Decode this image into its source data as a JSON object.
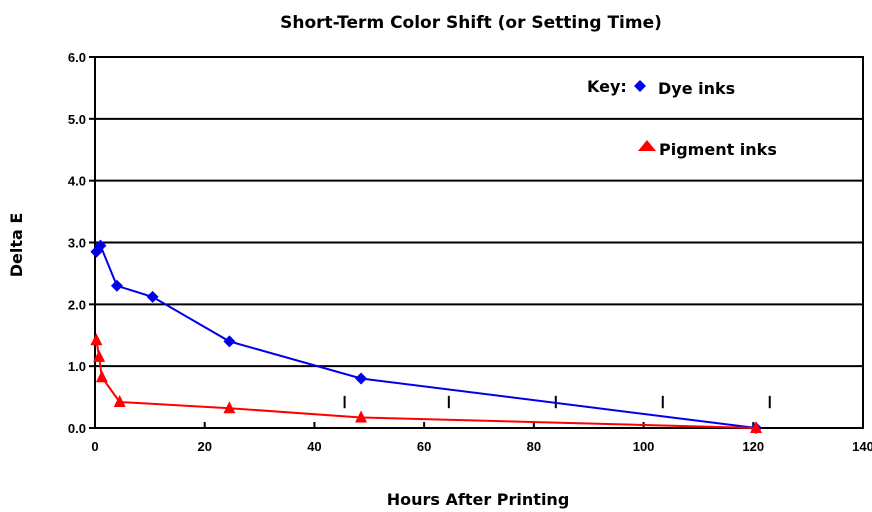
{
  "chart_data": {
    "type": "line",
    "title": "Short-Term Color Shift (or Setting Time)",
    "xlabel": "Hours After Printing",
    "ylabel": "Delta E",
    "xlim": [
      0,
      140
    ],
    "ylim": [
      0,
      6
    ],
    "x_ticks": [
      0,
      20,
      40,
      60,
      80,
      100,
      120,
      140
    ],
    "y_ticks": [
      "0.0",
      "1.0",
      "2.0",
      "3.0",
      "4.0",
      "5.0",
      "6.0"
    ],
    "grid": "horizontal",
    "legend": {
      "title": "Key:",
      "position": "top-right"
    },
    "series": [
      {
        "name": "Dye inks",
        "color": "#0000ee",
        "marker": "diamond",
        "points": [
          {
            "x": 0.25,
            "y": 2.85
          },
          {
            "x": 1,
            "y": 2.95
          },
          {
            "x": 4,
            "y": 2.3
          },
          {
            "x": 10.5,
            "y": 2.12
          },
          {
            "x": 24.5,
            "y": 1.4
          },
          {
            "x": 48.5,
            "y": 0.8
          },
          {
            "x": 120.5,
            "y": 0.0
          }
        ]
      },
      {
        "name": "Pigment inks",
        "color": "#ff0000",
        "marker": "triangle",
        "points": [
          {
            "x": 0.25,
            "y": 1.42
          },
          {
            "x": 0.75,
            "y": 1.15
          },
          {
            "x": 1.25,
            "y": 0.82
          },
          {
            "x": 4.5,
            "y": 0.42
          },
          {
            "x": 24.5,
            "y": 0.32
          },
          {
            "x": 48.5,
            "y": 0.17
          },
          {
            "x": 120.5,
            "y": 0.0
          }
        ]
      }
    ],
    "extra_marks_x": [
      45.5,
      64.5,
      84,
      103.5,
      123
    ]
  }
}
